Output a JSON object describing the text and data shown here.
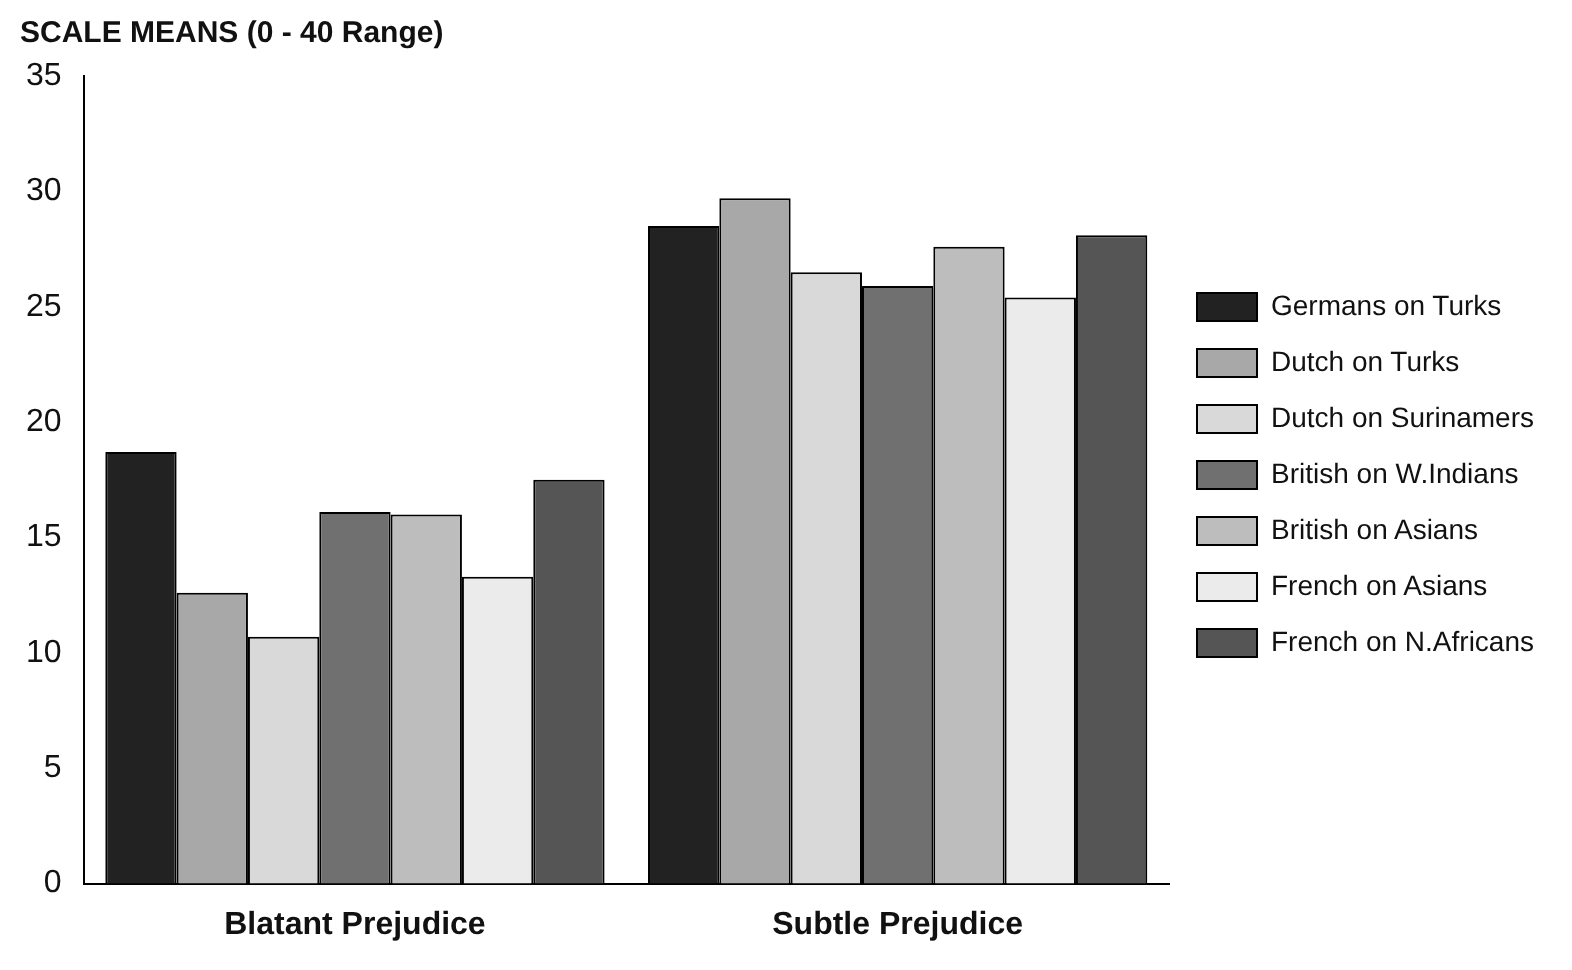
{
  "chart_data": {
    "type": "bar",
    "title": "SCALE MEANS (0 - 40 Range)",
    "categories": [
      "Blatant Prejudice",
      "Subtle Prejudice"
    ],
    "series": [
      {
        "name": "Germans on Turks",
        "color": "#222222",
        "values": [
          18.7,
          28.5
        ]
      },
      {
        "name": "Dutch on Turks",
        "color": "#a8a8a8",
        "values": [
          12.6,
          29.7
        ]
      },
      {
        "name": "Dutch on Surinamers",
        "color": "#d9d9d9",
        "values": [
          10.7,
          26.5
        ]
      },
      {
        "name": "British on W.Indians",
        "color": "#707070",
        "values": [
          16.1,
          25.9
        ]
      },
      {
        "name": "British on Asians",
        "color": "#bdbdbd",
        "values": [
          16.0,
          27.6
        ]
      },
      {
        "name": "French on Asians",
        "color": "#ebebeb",
        "values": [
          13.3,
          25.4
        ]
      },
      {
        "name": "French on N.Africans",
        "color": "#555555",
        "values": [
          17.5,
          28.1
        ]
      }
    ],
    "ylim": [
      0,
      35
    ],
    "yticks": [
      0,
      5,
      10,
      15,
      20,
      25,
      30,
      35
    ],
    "grid": false,
    "legend": "right"
  }
}
